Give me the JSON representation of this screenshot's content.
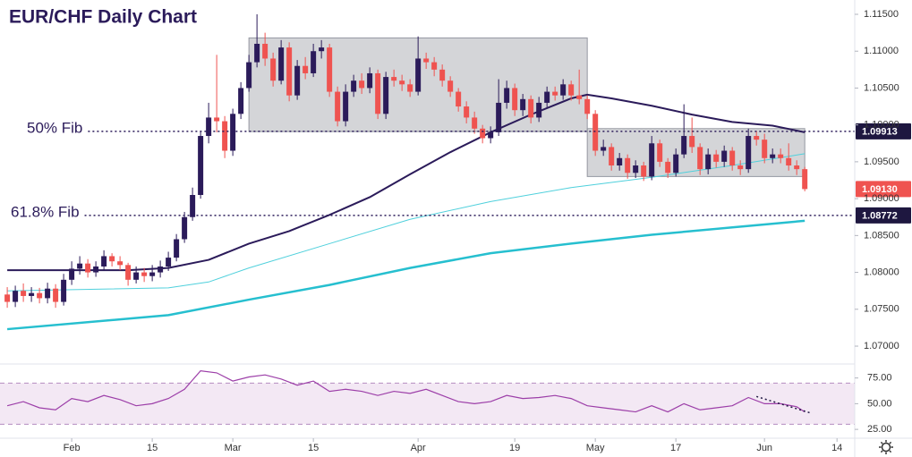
{
  "chart_data": {
    "type": "candlestick",
    "title": "EUR/CHF Daily Chart",
    "up_color": "#2b1b5a",
    "down_color": "#ef5350",
    "xlim": [
      -0.9,
      105.2
    ],
    "xticks": [
      {
        "value": 8,
        "label": "Feb"
      },
      {
        "value": 18,
        "label": "15"
      },
      {
        "value": 28,
        "label": "Mar"
      },
      {
        "value": 38,
        "label": "15"
      },
      {
        "value": 51,
        "label": "Apr"
      },
      {
        "value": 63,
        "label": "19"
      },
      {
        "value": 73,
        "label": "May"
      },
      {
        "value": 83,
        "label": "17"
      },
      {
        "value": 94,
        "label": "Jun"
      },
      {
        "value": 103,
        "label": "14"
      }
    ],
    "ylim": [
      1.06782,
      1.11694
    ],
    "yticks": [
      {
        "value": 1.07,
        "label": "1.07000"
      },
      {
        "value": 1.075,
        "label": "1.07500"
      },
      {
        "value": 1.08,
        "label": "1.08000"
      },
      {
        "value": 1.085,
        "label": "1.08500"
      },
      {
        "value": 1.09,
        "label": "1.09000"
      },
      {
        "value": 1.095,
        "label": "1.09500"
      },
      {
        "value": 1.1,
        "label": "1.10000"
      },
      {
        "value": 1.105,
        "label": "1.10500"
      },
      {
        "value": 1.11,
        "label": "1.11000"
      },
      {
        "value": 1.115,
        "label": "1.11500"
      }
    ],
    "open": [
      1.077,
      1.076,
      1.0775,
      1.0768,
      1.0772,
      1.0765,
      1.0778,
      1.076,
      1.079,
      1.0805,
      1.0812,
      1.08,
      1.0808,
      1.0822,
      1.0815,
      1.081,
      1.079,
      1.08,
      1.0795,
      1.08,
      1.0808,
      1.082,
      1.0845,
      1.0875,
      1.0905,
      1.0985,
      1.101,
      1.1005,
      1.0965,
      1.1015,
      1.105,
      1.1085,
      1.111,
      1.109,
      1.106,
      1.1105,
      1.104,
      1.108,
      1.107,
      1.11,
      1.1105,
      1.1045,
      1.1005,
      1.1045,
      1.106,
      1.105,
      1.107,
      1.1015,
      1.1065,
      1.106,
      1.1055,
      1.1045,
      1.109,
      1.1085,
      1.1075,
      1.106,
      1.1045,
      1.1025,
      1.101,
      1.0995,
      1.0982,
      1.099,
      1.103,
      1.105,
      1.102,
      1.1035,
      1.101,
      1.103,
      1.1045,
      1.104,
      1.1055,
      1.104,
      1.1035,
      1.1015,
      1.0965,
      1.097,
      1.0945,
      1.0955,
      1.0935,
      1.0945,
      1.093,
      1.0975,
      1.095,
      1.0935,
      1.096,
      1.0985,
      1.097,
      1.094,
      1.096,
      1.095,
      1.0965,
      1.0945,
      1.094,
      1.0985,
      1.098,
      1.0955,
      1.096,
      1.0955,
      1.0945,
      1.094
    ],
    "high": [
      1.078,
      1.0782,
      1.0785,
      1.078,
      1.0779,
      1.0786,
      1.0784,
      1.0798,
      1.0815,
      1.0822,
      1.0818,
      1.0815,
      1.083,
      1.0826,
      1.0822,
      1.0813,
      1.0808,
      1.0806,
      1.081,
      1.0816,
      1.0828,
      1.0852,
      1.0882,
      1.0915,
      1.0992,
      1.103,
      1.1095,
      1.1012,
      1.1022,
      1.1058,
      1.1095,
      1.115,
      1.1125,
      1.1098,
      1.1115,
      1.1112,
      1.1088,
      1.1092,
      1.111,
      1.1115,
      1.111,
      1.1052,
      1.1055,
      1.1068,
      1.107,
      1.1078,
      1.1075,
      1.1072,
      1.1075,
      1.1068,
      1.1062,
      1.112,
      1.1098,
      1.1092,
      1.1082,
      1.1066,
      1.105,
      1.1032,
      1.1018,
      1.1,
      1.0998,
      1.1062,
      1.106,
      1.1056,
      1.1042,
      1.104,
      1.1038,
      1.1052,
      1.1052,
      1.1062,
      1.106,
      1.1075,
      1.104,
      1.102,
      1.098,
      1.0975,
      1.0962,
      1.096,
      1.0952,
      1.095,
      1.0985,
      1.098,
      1.0955,
      1.0968,
      1.1028,
      1.101,
      1.0975,
      1.0968,
      1.0966,
      1.0972,
      1.097,
      1.0952,
      1.0995,
      1.0992,
      1.0988,
      1.0968,
      1.0968,
      1.0975,
      1.0952,
      1.0943
    ],
    "low": [
      1.0752,
      1.0753,
      1.076,
      1.076,
      1.0758,
      1.0758,
      1.0752,
      1.0755,
      1.0783,
      1.0797,
      1.0793,
      1.0794,
      1.0802,
      1.0808,
      1.0803,
      1.0782,
      1.0785,
      1.0787,
      1.0788,
      1.0793,
      1.0802,
      1.0815,
      1.084,
      1.087,
      1.09,
      1.0975,
      1.099,
      1.0955,
      1.0958,
      1.1008,
      1.1045,
      1.1078,
      1.108,
      1.1052,
      1.1055,
      1.1032,
      1.1034,
      1.1062,
      1.1065,
      1.109,
      1.1038,
      1.0998,
      1.0998,
      1.1038,
      1.1042,
      1.1043,
      1.1008,
      1.1008,
      1.1052,
      1.1046,
      1.1038,
      1.104,
      1.1076,
      1.1066,
      1.1052,
      1.1038,
      1.1018,
      1.1002,
      1.0988,
      1.0975,
      1.0975,
      1.0985,
      1.1022,
      1.1012,
      1.1012,
      1.1002,
      1.1004,
      1.1024,
      1.1033,
      1.1034,
      1.1033,
      1.1028,
      1.1008,
      1.0958,
      1.0958,
      1.0938,
      1.0938,
      1.0927,
      1.0928,
      1.0924,
      1.0925,
      1.0943,
      1.0928,
      1.093,
      1.0955,
      1.0962,
      1.0932,
      1.0933,
      1.0942,
      1.0943,
      1.0938,
      1.0932,
      1.0935,
      1.0972,
      1.0948,
      1.0948,
      1.0948,
      1.0938,
      1.0932,
      1.091
    ],
    "close": [
      1.076,
      1.0775,
      1.0768,
      1.0772,
      1.0765,
      1.0778,
      1.076,
      1.079,
      1.0805,
      1.0812,
      1.08,
      1.0808,
      1.0822,
      1.0815,
      1.081,
      1.079,
      1.08,
      1.0795,
      1.08,
      1.0808,
      1.082,
      1.0845,
      1.0875,
      1.0905,
      1.0985,
      1.101,
      1.1005,
      1.0965,
      1.1015,
      1.105,
      1.1085,
      1.111,
      1.109,
      1.106,
      1.1105,
      1.104,
      1.108,
      1.107,
      1.11,
      1.1105,
      1.1045,
      1.1005,
      1.1045,
      1.106,
      1.105,
      1.107,
      1.1015,
      1.1065,
      1.106,
      1.1055,
      1.1045,
      1.109,
      1.1085,
      1.1075,
      1.106,
      1.1045,
      1.1025,
      1.101,
      1.0995,
      1.0982,
      1.099,
      1.103,
      1.105,
      1.102,
      1.1035,
      1.101,
      1.103,
      1.1045,
      1.104,
      1.1055,
      1.104,
      1.1035,
      1.1015,
      1.0965,
      1.097,
      1.0945,
      1.0955,
      1.0935,
      1.0945,
      1.093,
      1.0975,
      1.095,
      1.0935,
      1.096,
      1.0985,
      1.097,
      1.094,
      1.096,
      1.095,
      1.0965,
      1.0945,
      1.094,
      1.0985,
      1.098,
      1.0955,
      1.096,
      1.0955,
      1.0945,
      1.094,
      1.0913
    ],
    "close_label": "1.09130",
    "close_label_color": "#ef5350",
    "moving_averages": [
      {
        "color": "#2b1b5a",
        "width": 2,
        "x": [
          0,
          10,
          15,
          20,
          25,
          30,
          35,
          40,
          45,
          50,
          55,
          60,
          65,
          70,
          72,
          75,
          80,
          85,
          90,
          95,
          99
        ],
        "values": [
          1.0803,
          1.0803,
          1.0803,
          1.0806,
          1.0817,
          1.0839,
          1.0856,
          1.0878,
          1.0902,
          1.0933,
          1.0963,
          1.099,
          1.1014,
          1.1036,
          1.1041,
          1.1036,
          1.1026,
          1.1014,
          1.1004,
          1.0999,
          1.099
        ]
      },
      {
        "color": "#4fd0dc",
        "width": 1,
        "x": [
          0,
          20,
          25,
          30,
          40,
          50,
          60,
          70,
          80,
          90,
          99
        ],
        "values": [
          1.0775,
          1.0779,
          1.0787,
          1.0806,
          1.0839,
          1.0872,
          1.0896,
          1.0915,
          1.0929,
          1.0945,
          1.0961
        ]
      },
      {
        "color": "#26bfcf",
        "width": 2.5,
        "x": [
          0,
          20,
          30,
          40,
          50,
          60,
          70,
          80,
          90,
          99
        ],
        "values": [
          1.0723,
          1.0742,
          1.0763,
          1.0783,
          1.0806,
          1.0826,
          1.0839,
          1.0851,
          1.0861,
          1.087
        ]
      }
    ],
    "zones": [
      {
        "x0": 30,
        "x1": 72,
        "y0": 1.0991,
        "y1": 1.1118
      },
      {
        "x0": 72,
        "x1": 99,
        "y0": 1.093,
        "y1": 1.0995
      }
    ],
    "levels": [
      {
        "name": "50% Fib",
        "value": 1.09913,
        "label": "1.09913"
      },
      {
        "name": "61.8% Fib",
        "value": 1.08772,
        "label": "1.08772"
      }
    ],
    "rsi": {
      "type": "line",
      "color": "#9c3ea8",
      "ylim": [
        16.4,
        86
      ],
      "yticks": [
        {
          "value": 25,
          "label": "25.00"
        },
        {
          "value": 50,
          "label": "50.00"
        },
        {
          "value": 75,
          "label": "75.00"
        }
      ],
      "band": [
        30,
        70
      ],
      "x": [
        0,
        2,
        4,
        6,
        8,
        10,
        12,
        14,
        16,
        18,
        20,
        22,
        24,
        26,
        28,
        30,
        32,
        34,
        36,
        38,
        40,
        42,
        44,
        46,
        48,
        50,
        52,
        54,
        56,
        58,
        60,
        62,
        64,
        66,
        68,
        70,
        72,
        74,
        76,
        78,
        80,
        82,
        84,
        86,
        88,
        90,
        92,
        94,
        96,
        98,
        99
      ],
      "values": [
        48,
        52,
        46,
        44,
        55,
        52,
        58,
        54,
        48,
        50,
        55,
        64,
        82,
        80,
        72,
        76,
        78,
        74,
        68,
        72,
        62,
        64,
        62,
        58,
        62,
        60,
        64,
        58,
        52,
        50,
        52,
        58,
        55,
        56,
        58,
        55,
        48,
        46,
        44,
        42,
        48,
        42,
        50,
        44,
        46,
        48,
        56,
        50,
        50,
        47,
        42
      ],
      "trendline": {
        "x": [
          93,
          99.7
        ],
        "values": [
          57,
          41
        ]
      }
    }
  }
}
